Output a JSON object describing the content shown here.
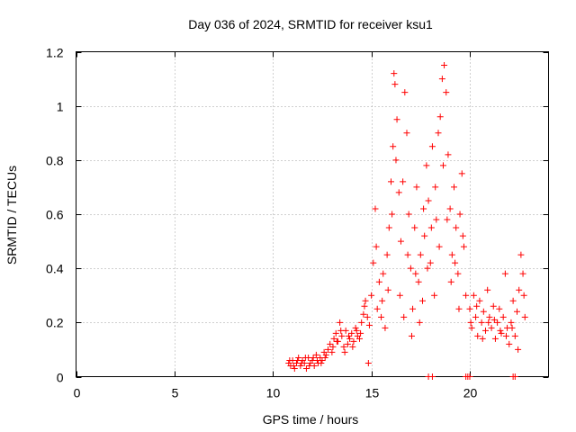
{
  "chart_data": {
    "type": "scatter",
    "title": "Day 036 of 2024, SRMTID for receiver ksu1",
    "xlabel": "GPS time / hours",
    "ylabel": "SRMTID / TECUs",
    "xlim": [
      0,
      24
    ],
    "ylim": [
      0,
      1.2
    ],
    "xticks": [
      0,
      5,
      10,
      15,
      20
    ],
    "xtick_labels": [
      "0",
      "5",
      "10",
      "15",
      "20"
    ],
    "yticks": [
      0,
      0.2,
      0.4,
      0.6,
      0.8,
      1,
      1.2
    ],
    "ytick_labels": [
      "0",
      "0.2",
      "0.4",
      "0.6",
      "0.8",
      "1",
      "1.2"
    ],
    "grid": true,
    "marker": "+",
    "color": "#ff0000",
    "series": [
      {
        "name": "SRMTID",
        "points": [
          [
            10.8,
            0.05
          ],
          [
            10.9,
            0.04
          ],
          [
            11.0,
            0.06
          ],
          [
            11.1,
            0.03
          ],
          [
            11.2,
            0.05
          ],
          [
            11.3,
            0.07
          ],
          [
            11.4,
            0.04
          ],
          [
            11.5,
            0.06
          ],
          [
            11.6,
            0.05
          ],
          [
            11.7,
            0.03
          ],
          [
            11.8,
            0.07
          ],
          [
            11.9,
            0.05
          ],
          [
            12.0,
            0.06
          ],
          [
            12.1,
            0.04
          ],
          [
            12.2,
            0.08
          ],
          [
            12.3,
            0.05
          ],
          [
            12.4,
            0.07
          ],
          [
            12.5,
            0.06
          ],
          [
            12.6,
            0.09
          ],
          [
            12.7,
            0.08
          ],
          [
            10.85,
            0.06
          ],
          [
            11.05,
            0.04
          ],
          [
            11.25,
            0.06
          ],
          [
            11.45,
            0.05
          ],
          [
            11.65,
            0.07
          ],
          [
            11.85,
            0.04
          ],
          [
            12.05,
            0.07
          ],
          [
            12.25,
            0.06
          ],
          [
            12.45,
            0.05
          ],
          [
            12.65,
            0.07
          ],
          [
            12.8,
            0.1
          ],
          [
            12.9,
            0.12
          ],
          [
            13.0,
            0.09
          ],
          [
            13.1,
            0.14
          ],
          [
            13.2,
            0.16
          ],
          [
            13.3,
            0.13
          ],
          [
            13.4,
            0.2
          ],
          [
            13.5,
            0.15
          ],
          [
            13.6,
            0.11
          ],
          [
            13.7,
            0.17
          ],
          [
            13.8,
            0.12
          ],
          [
            13.9,
            0.14
          ],
          [
            14.0,
            0.16
          ],
          [
            14.1,
            0.13
          ],
          [
            14.2,
            0.18
          ],
          [
            14.3,
            0.15
          ],
          [
            14.4,
            0.14
          ],
          [
            14.5,
            0.2
          ],
          [
            14.6,
            0.23
          ],
          [
            14.7,
            0.28
          ],
          [
            14.8,
            0.22
          ],
          [
            14.9,
            0.19
          ],
          [
            13.05,
            0.11
          ],
          [
            13.25,
            0.13
          ],
          [
            13.45,
            0.17
          ],
          [
            13.65,
            0.09
          ],
          [
            13.85,
            0.15
          ],
          [
            14.05,
            0.11
          ],
          [
            14.25,
            0.17
          ],
          [
            14.45,
            0.16
          ],
          [
            14.65,
            0.26
          ],
          [
            14.85,
            0.05
          ],
          [
            15.0,
            0.3
          ],
          [
            15.1,
            0.42
          ],
          [
            15.2,
            0.62
          ],
          [
            15.3,
            0.25
          ],
          [
            15.4,
            0.35
          ],
          [
            15.5,
            0.22
          ],
          [
            15.6,
            0.38
          ],
          [
            15.7,
            0.18
          ],
          [
            15.8,
            0.45
          ],
          [
            15.9,
            0.55
          ],
          [
            16.0,
            0.72
          ],
          [
            16.1,
            0.85
          ],
          [
            16.15,
            1.12
          ],
          [
            16.2,
            1.08
          ],
          [
            16.3,
            0.95
          ],
          [
            16.4,
            0.68
          ],
          [
            16.5,
            0.5
          ],
          [
            16.6,
            0.72
          ],
          [
            16.7,
            1.05
          ],
          [
            16.8,
            0.9
          ],
          [
            16.9,
            0.6
          ],
          [
            17.0,
            0.4
          ],
          [
            17.1,
            0.25
          ],
          [
            17.2,
            0.55
          ],
          [
            17.3,
            0.7
          ],
          [
            17.4,
            0.35
          ],
          [
            17.5,
            0.45
          ],
          [
            17.6,
            0.28
          ],
          [
            17.7,
            0.52
          ],
          [
            17.8,
            0.78
          ],
          [
            17.9,
            0.65
          ],
          [
            18.0,
            0.42
          ],
          [
            18.1,
            0.85
          ],
          [
            18.2,
            0.3
          ],
          [
            18.3,
            0.58
          ],
          [
            18.4,
            0.9
          ],
          [
            18.5,
            0.96
          ],
          [
            18.6,
            1.1
          ],
          [
            18.7,
            1.15
          ],
          [
            18.8,
            1.05
          ],
          [
            18.9,
            0.82
          ],
          [
            19.0,
            0.62
          ],
          [
            19.1,
            0.45
          ],
          [
            19.2,
            0.7
          ],
          [
            19.3,
            0.55
          ],
          [
            19.4,
            0.38
          ],
          [
            19.5,
            0.6
          ],
          [
            19.6,
            0.75
          ],
          [
            19.7,
            0.48
          ],
          [
            19.8,
            0.3
          ],
          [
            15.25,
            0.48
          ],
          [
            15.55,
            0.28
          ],
          [
            15.85,
            0.32
          ],
          [
            16.05,
            0.6
          ],
          [
            16.25,
            0.8
          ],
          [
            16.45,
            0.3
          ],
          [
            16.65,
            0.22
          ],
          [
            16.85,
            0.45
          ],
          [
            17.05,
            0.15
          ],
          [
            17.25,
            0.38
          ],
          [
            17.45,
            0.2
          ],
          [
            17.65,
            0.62
          ],
          [
            17.85,
            0.4
          ],
          [
            18.05,
            0.55
          ],
          [
            18.25,
            0.7
          ],
          [
            18.45,
            0.48
          ],
          [
            18.65,
            0.78
          ],
          [
            18.85,
            0.58
          ],
          [
            19.05,
            0.35
          ],
          [
            19.25,
            0.42
          ],
          [
            19.45,
            0.25
          ],
          [
            19.65,
            0.52
          ],
          [
            20.0,
            0.25
          ],
          [
            20.1,
            0.18
          ],
          [
            20.2,
            0.3
          ],
          [
            20.3,
            0.22
          ],
          [
            20.4,
            0.15
          ],
          [
            20.5,
            0.28
          ],
          [
            20.6,
            0.2
          ],
          [
            20.7,
            0.24
          ],
          [
            20.8,
            0.17
          ],
          [
            20.9,
            0.32
          ],
          [
            21.0,
            0.22
          ],
          [
            21.1,
            0.18
          ],
          [
            21.2,
            0.26
          ],
          [
            21.3,
            0.14
          ],
          [
            21.4,
            0.2
          ],
          [
            21.5,
            0.25
          ],
          [
            21.6,
            0.16
          ],
          [
            21.7,
            0.22
          ],
          [
            21.8,
            0.38
          ],
          [
            21.9,
            0.18
          ],
          [
            22.0,
            0.12
          ],
          [
            22.1,
            0.2
          ],
          [
            22.2,
            0.28
          ],
          [
            22.3,
            0.15
          ],
          [
            22.4,
            0.24
          ],
          [
            22.5,
            0.32
          ],
          [
            22.6,
            0.45
          ],
          [
            22.7,
            0.38
          ],
          [
            22.8,
            0.22
          ],
          [
            20.05,
            0.2
          ],
          [
            20.35,
            0.26
          ],
          [
            20.65,
            0.14
          ],
          [
            20.95,
            0.2
          ],
          [
            21.25,
            0.21
          ],
          [
            21.55,
            0.17
          ],
          [
            21.85,
            0.15
          ],
          [
            22.15,
            0.18
          ],
          [
            22.45,
            0.1
          ],
          [
            22.75,
            0.3
          ],
          [
            17.9,
            0.0
          ],
          [
            18.1,
            0.0
          ],
          [
            19.8,
            0.0
          ],
          [
            19.9,
            0.0
          ],
          [
            20.0,
            0.0
          ],
          [
            22.2,
            0.0
          ],
          [
            22.3,
            0.0
          ]
        ]
      }
    ]
  }
}
